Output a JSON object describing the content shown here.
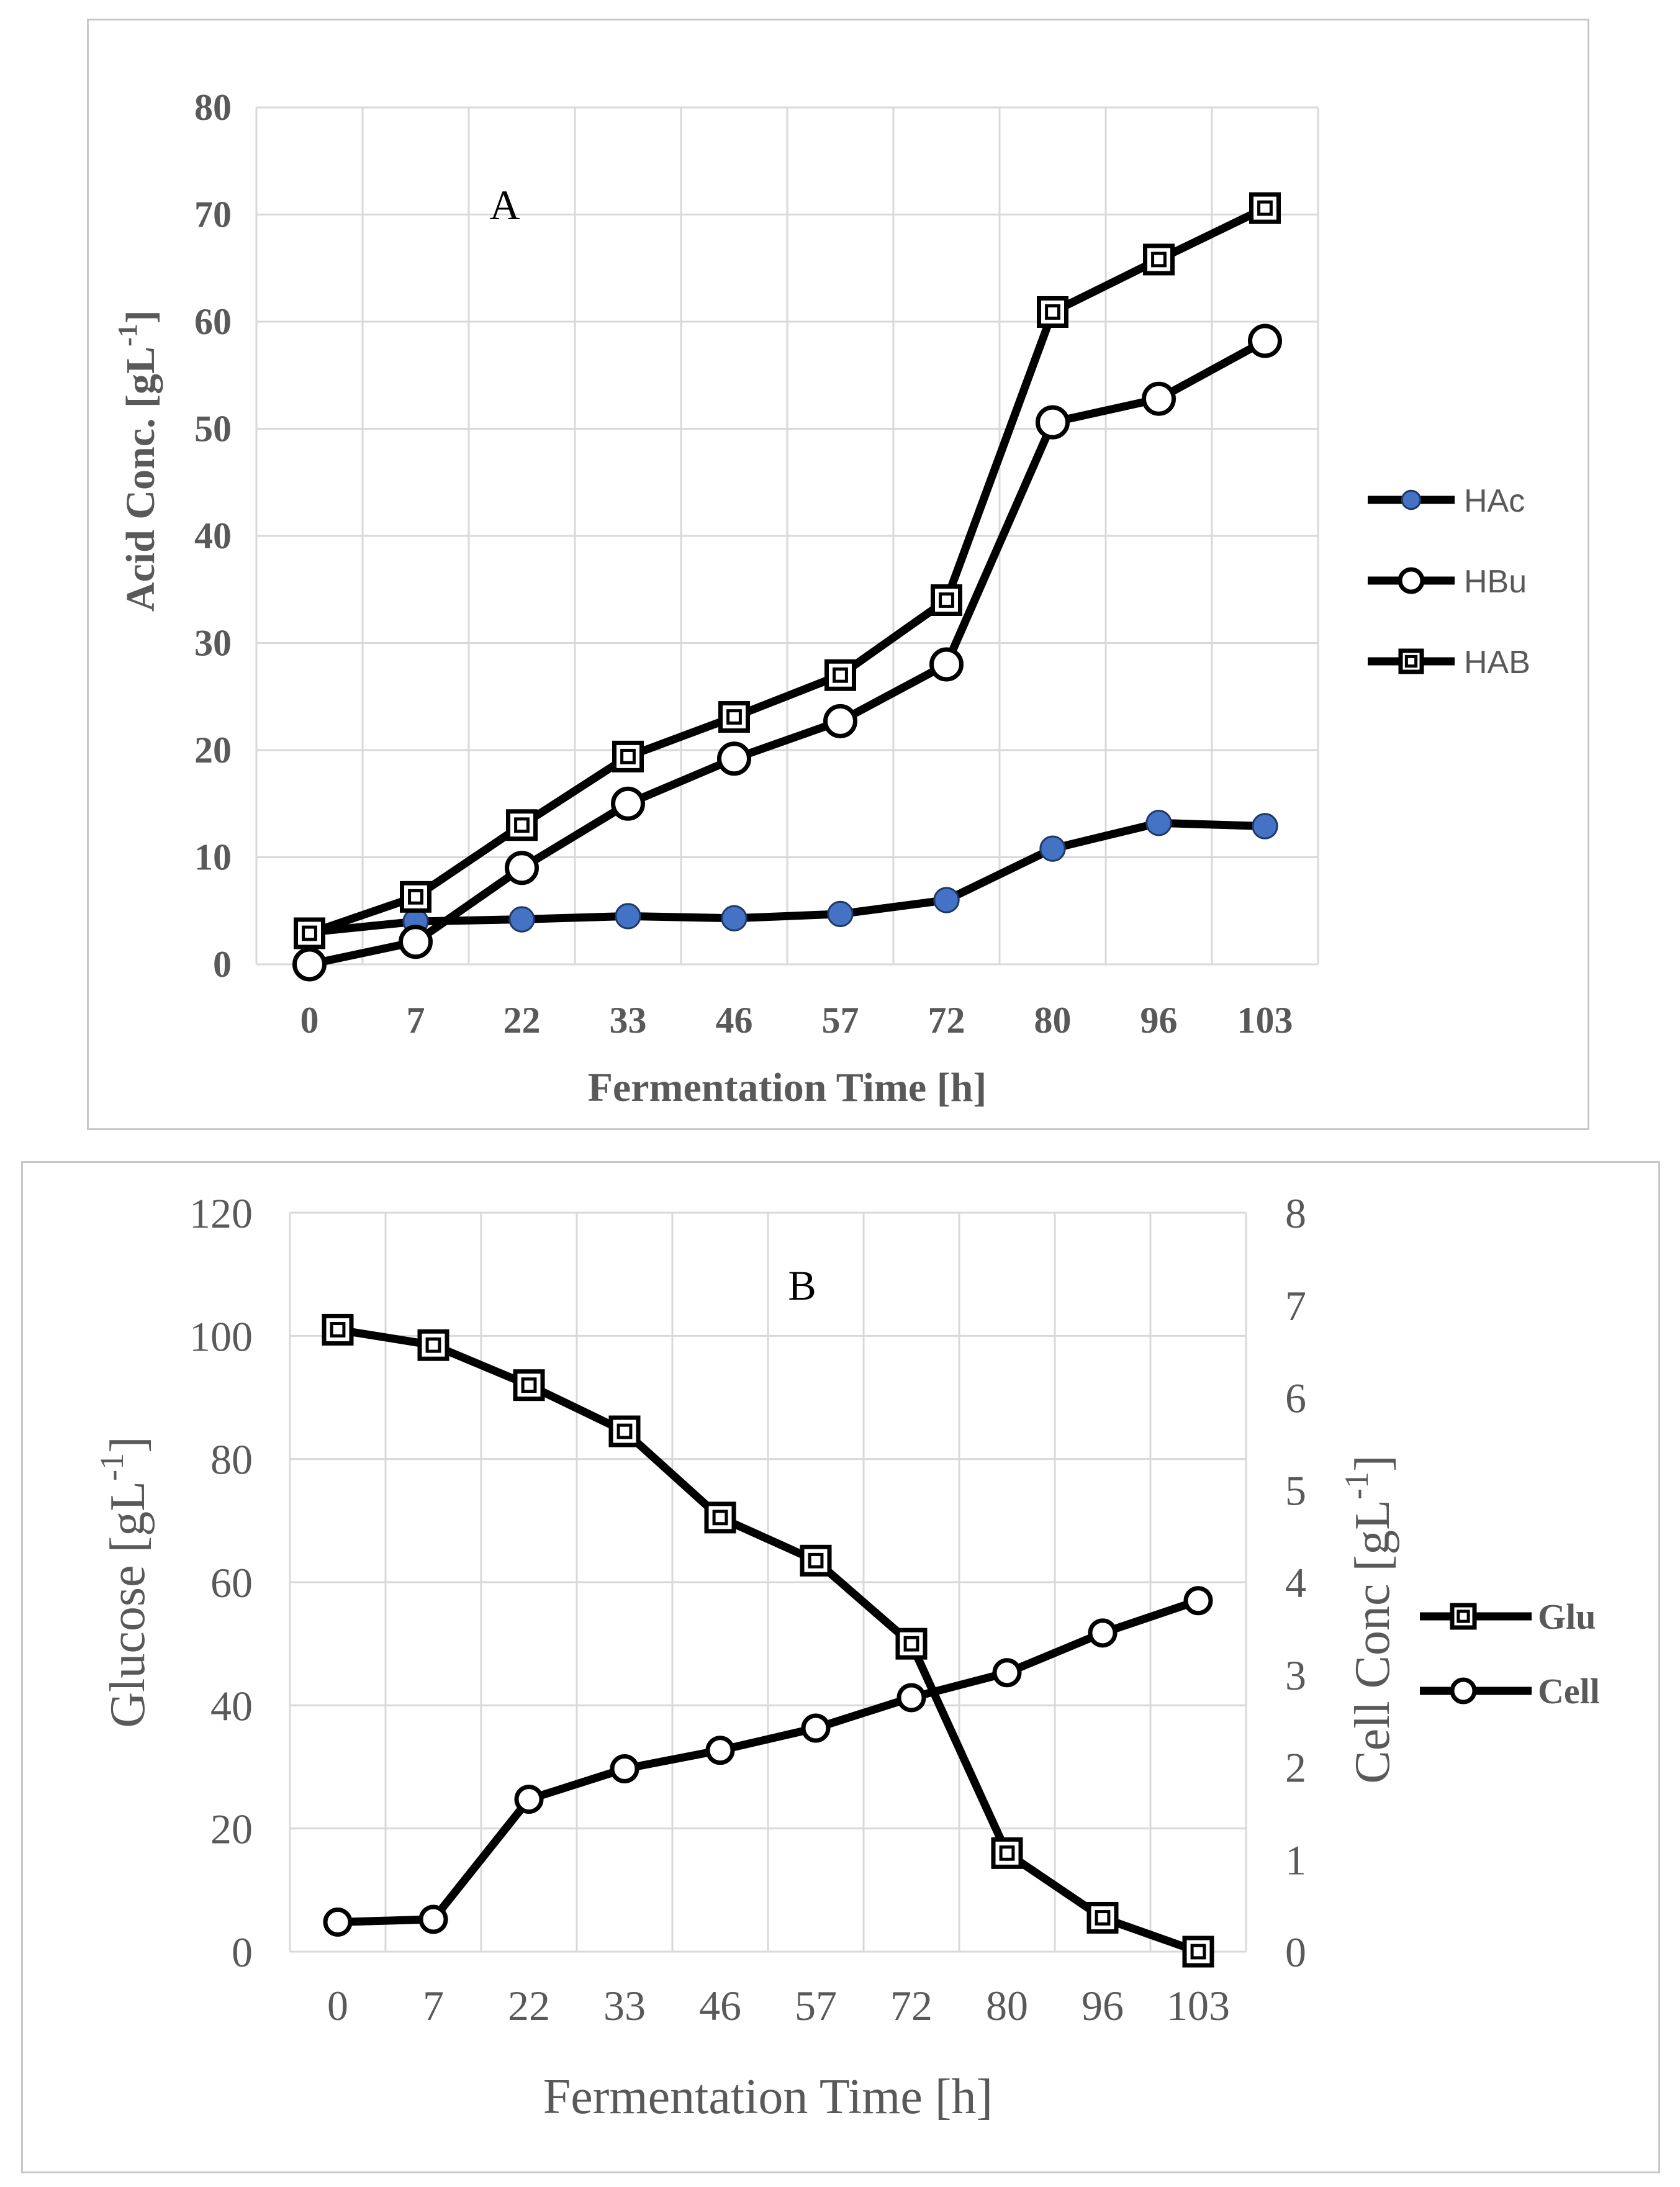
{
  "chart_data": [
    {
      "type": "line",
      "panel_label": "A",
      "title": "",
      "xlabel": "Fermentation Time [h]",
      "ylabel": "Acid Conc. [gL-1]",
      "ylabel_main": "Acid Conc. [gL",
      "ylabel_sup": "-1",
      "ylabel_close": "]",
      "categories": [
        "0",
        "7",
        "22",
        "33",
        "46",
        "57",
        "72",
        "80",
        "96",
        "103"
      ],
      "ylim": [
        0,
        80
      ],
      "yticks": [
        "0",
        "10",
        "20",
        "30",
        "40",
        "50",
        "60",
        "70",
        "80"
      ],
      "grid": true,
      "legend_position": "right",
      "series": [
        {
          "name": "HAc",
          "marker": "filled-circle",
          "color": "#4472c4",
          "values": [
            3.0,
            4.0,
            4.2,
            4.5,
            4.3,
            4.7,
            6.0,
            10.8,
            13.2,
            12.9
          ]
        },
        {
          "name": "HBu",
          "marker": "open-circle",
          "color": "#000000",
          "values": [
            0.0,
            2.1,
            9.0,
            15.0,
            19.2,
            22.7,
            28.0,
            50.6,
            52.8,
            58.2
          ]
        },
        {
          "name": "HAB",
          "marker": "open-square",
          "color": "#000000",
          "values": [
            2.9,
            6.3,
            13.0,
            19.4,
            23.1,
            27.0,
            34.0,
            60.9,
            65.8,
            70.6
          ]
        }
      ]
    },
    {
      "type": "line",
      "panel_label": "B",
      "title": "",
      "xlabel": "Fermentation Time [h]",
      "ylabel": "Glucose [gL-1]",
      "ylabel_main": "Glucose [gL",
      "ylabel_sup": "-1",
      "ylabel_close": "]",
      "y2label": "Cell Conc [gL-1]",
      "y2label_main": "Cell Conc [gL",
      "y2label_sup": "-1",
      "y2label_close": "]",
      "categories": [
        "0",
        "7",
        "22",
        "33",
        "46",
        "57",
        "72",
        "80",
        "96",
        "103"
      ],
      "ylim": [
        0,
        120
      ],
      "yticks": [
        "0",
        "20",
        "40",
        "60",
        "80",
        "100",
        "120"
      ],
      "y2lim": [
        0,
        8
      ],
      "y2ticks": [
        "0",
        "1",
        "2",
        "3",
        "4",
        "5",
        "6",
        "7",
        "8"
      ],
      "grid": true,
      "legend_position": "right",
      "series": [
        {
          "name": "Glu",
          "axis": "left",
          "marker": "open-square",
          "color": "#000000",
          "values": [
            101,
            98.5,
            92,
            84.5,
            70.5,
            63.5,
            50,
            16,
            5.5,
            0
          ]
        },
        {
          "name": "Cell",
          "axis": "right",
          "marker": "open-circle",
          "color": "#000000",
          "values": [
            0.32,
            0.35,
            1.65,
            1.98,
            2.18,
            2.42,
            2.75,
            3.02,
            3.45,
            3.8
          ]
        }
      ]
    }
  ]
}
